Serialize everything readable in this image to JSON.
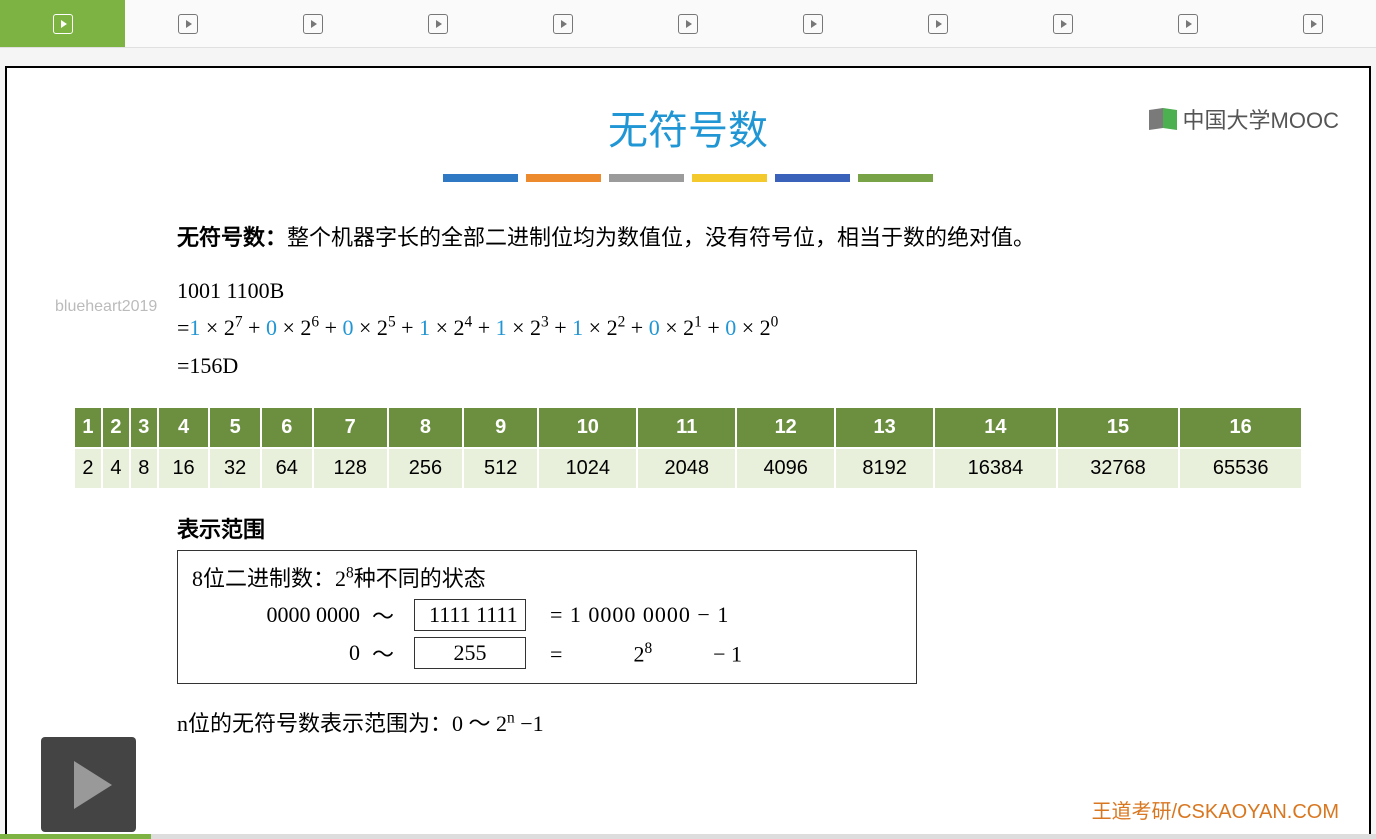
{
  "tabs_count": 11,
  "active_tab_index": 0,
  "mooc_logo_text": "中国大学MOOC",
  "slide_title": "无符号数",
  "color_bars": [
    "#2f79c4",
    "#ed8a2e",
    "#9b9b9b",
    "#f4c92c",
    "#3a62bb",
    "#78a447"
  ],
  "definition_label": "无符号数：",
  "definition_text": "整个机器字长的全部二进制位均为数值位，没有符号位，相当于数的绝对值。",
  "watermark": "blueheart2019",
  "formula": {
    "line1": "1001 1100B",
    "eq_prefix": "=",
    "terms": [
      {
        "d": "1",
        "p": "7"
      },
      {
        "d": "0",
        "p": "6"
      },
      {
        "d": "0",
        "p": "5"
      },
      {
        "d": "1",
        "p": "4"
      },
      {
        "d": "1",
        "p": "3"
      },
      {
        "d": "1",
        "p": "2"
      },
      {
        "d": "0",
        "p": "1"
      },
      {
        "d": "0",
        "p": "0"
      }
    ],
    "line3": "=156D"
  },
  "power_table": {
    "headers": [
      "1",
      "2",
      "3",
      "4",
      "5",
      "6",
      "7",
      "8",
      "9",
      "10",
      "11",
      "12",
      "13",
      "14",
      "15",
      "16"
    ],
    "values": [
      "2",
      "4",
      "8",
      "16",
      "32",
      "64",
      "128",
      "256",
      "512",
      "1024",
      "2048",
      "4096",
      "8192",
      "16384",
      "32768",
      "65536"
    ]
  },
  "range": {
    "heading": "表示范围",
    "desc_prefix": "8位二进制数：",
    "desc_formula_base": "2",
    "desc_formula_exp": "8",
    "desc_suffix": "种不同的状态",
    "row1_left": "0000 0000",
    "tilde": "～",
    "row1_box": "1111  1111",
    "row1_eq": "=  1  0000  0000  −  1",
    "row2_left": "0",
    "row2_box": "255",
    "row2_eq_prefix": "=",
    "row2_eq_base": "2",
    "row2_eq_exp": "8",
    "row2_eq_suffix": "−  1"
  },
  "n_formula_prefix": "n位的无符号数表示范围为：0  ～  2",
  "n_formula_exp": "n",
  "n_formula_suffix": " −1",
  "footer_brand": "王道考研/CSKAOYAN.COM",
  "progress_percent": 11
}
